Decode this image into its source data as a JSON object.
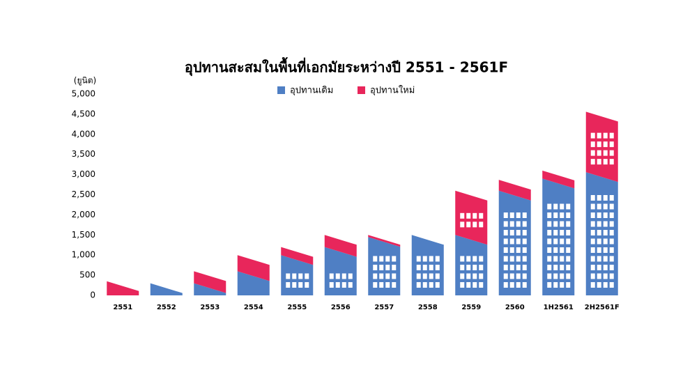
{
  "chart_data": {
    "type": "bar",
    "stacked": true,
    "title": "อุปทานสะสมในพื้นที่เอกมัยระหว่างปี 2551 - 2561F",
    "y_label": "(ยูนิต)",
    "categories": [
      "2551",
      "2552",
      "2553",
      "2554",
      "2555",
      "2556",
      "2557",
      "2558",
      "2559",
      "2560",
      "1H2561",
      "2H2561F"
    ],
    "series": [
      {
        "name": "อุปทานเดิม",
        "color": "#4f7fc4",
        "values": [
          0,
          300,
          300,
          600,
          1000,
          1200,
          1450,
          1500,
          1500,
          2600,
          2900,
          3060
        ]
      },
      {
        "name": "อุปทานใหม่",
        "color": "#e8265b",
        "values": [
          350,
          0,
          300,
          400,
          200,
          300,
          50,
          0,
          1100,
          270,
          200,
          1500
        ]
      }
    ],
    "ylim": [
      0,
      5000
    ],
    "yticks": [
      0,
      500,
      {
        "value": 1000,
        "label": "1,000"
      },
      {
        "value": 1500,
        "label": "1,500"
      },
      {
        "value": 2000,
        "label": "2,000"
      },
      {
        "value": 2500,
        "label": "2,500"
      },
      {
        "value": 3000,
        "label": "3,000"
      },
      {
        "value": 3500,
        "label": "3,500"
      },
      {
        "value": 4000,
        "label": "4,000"
      },
      {
        "value": 4500,
        "label": "4,500"
      },
      {
        "value": 5000,
        "label": "5,000"
      }
    ],
    "grid": false,
    "legend": "top"
  }
}
